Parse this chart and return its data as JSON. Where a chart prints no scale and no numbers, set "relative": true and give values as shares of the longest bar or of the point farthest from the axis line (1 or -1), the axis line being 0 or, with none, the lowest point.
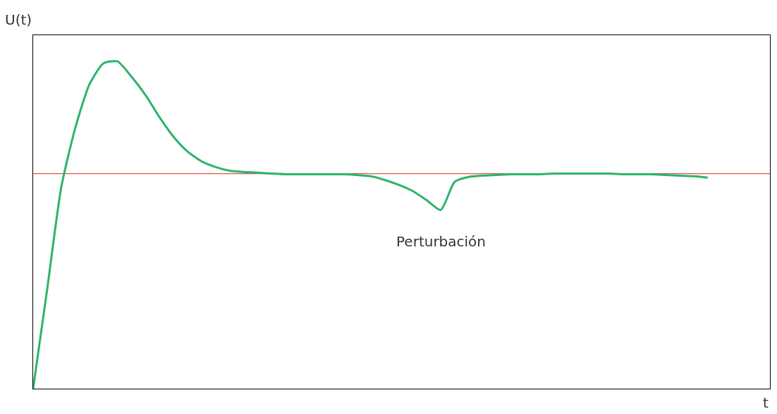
{
  "chart_data": {
    "type": "line",
    "relative": true,
    "xlabel": "t",
    "ylabel": "U(t)",
    "annotations": [
      "Perturbación"
    ],
    "grid": false,
    "legend": false,
    "marker": "none",
    "line_style": "solid",
    "categories": [
      null,
      null,
      null,
      null,
      null,
      null,
      null,
      null,
      null,
      null,
      null,
      null,
      null,
      null,
      null,
      null,
      null,
      null,
      null,
      null,
      null,
      null,
      null,
      null,
      null,
      null,
      null,
      null,
      null,
      null,
      null,
      null,
      null,
      null,
      null,
      null,
      null,
      null,
      null,
      null,
      null,
      null,
      null,
      null,
      null,
      null,
      null,
      null,
      null
    ],
    "series": [
      {
        "color": "#2db36b",
        "values": [
          0,
          0.304,
          0.615,
          0.797,
          0.929,
          0.994,
          1.0,
          0.953,
          0.897,
          0.829,
          0.769,
          0.724,
          0.694,
          0.677,
          0.666,
          0.662,
          0.66,
          0.657,
          0.655,
          0.655,
          0.655,
          0.655,
          0.655,
          0.653,
          0.649,
          0.638,
          0.623,
          0.604,
          0.576,
          0.546,
          0.632,
          0.647,
          0.651,
          0.653,
          0.655,
          0.655,
          0.655,
          0.657,
          0.657,
          0.657,
          0.657,
          0.657,
          0.655,
          0.655,
          0.655,
          0.653,
          0.651,
          0.649,
          0.645
        ]
      }
    ],
    "ref_lines": [
      {
        "axis": "y",
        "value": 0.657,
        "color": "#e0524a"
      }
    ]
  }
}
